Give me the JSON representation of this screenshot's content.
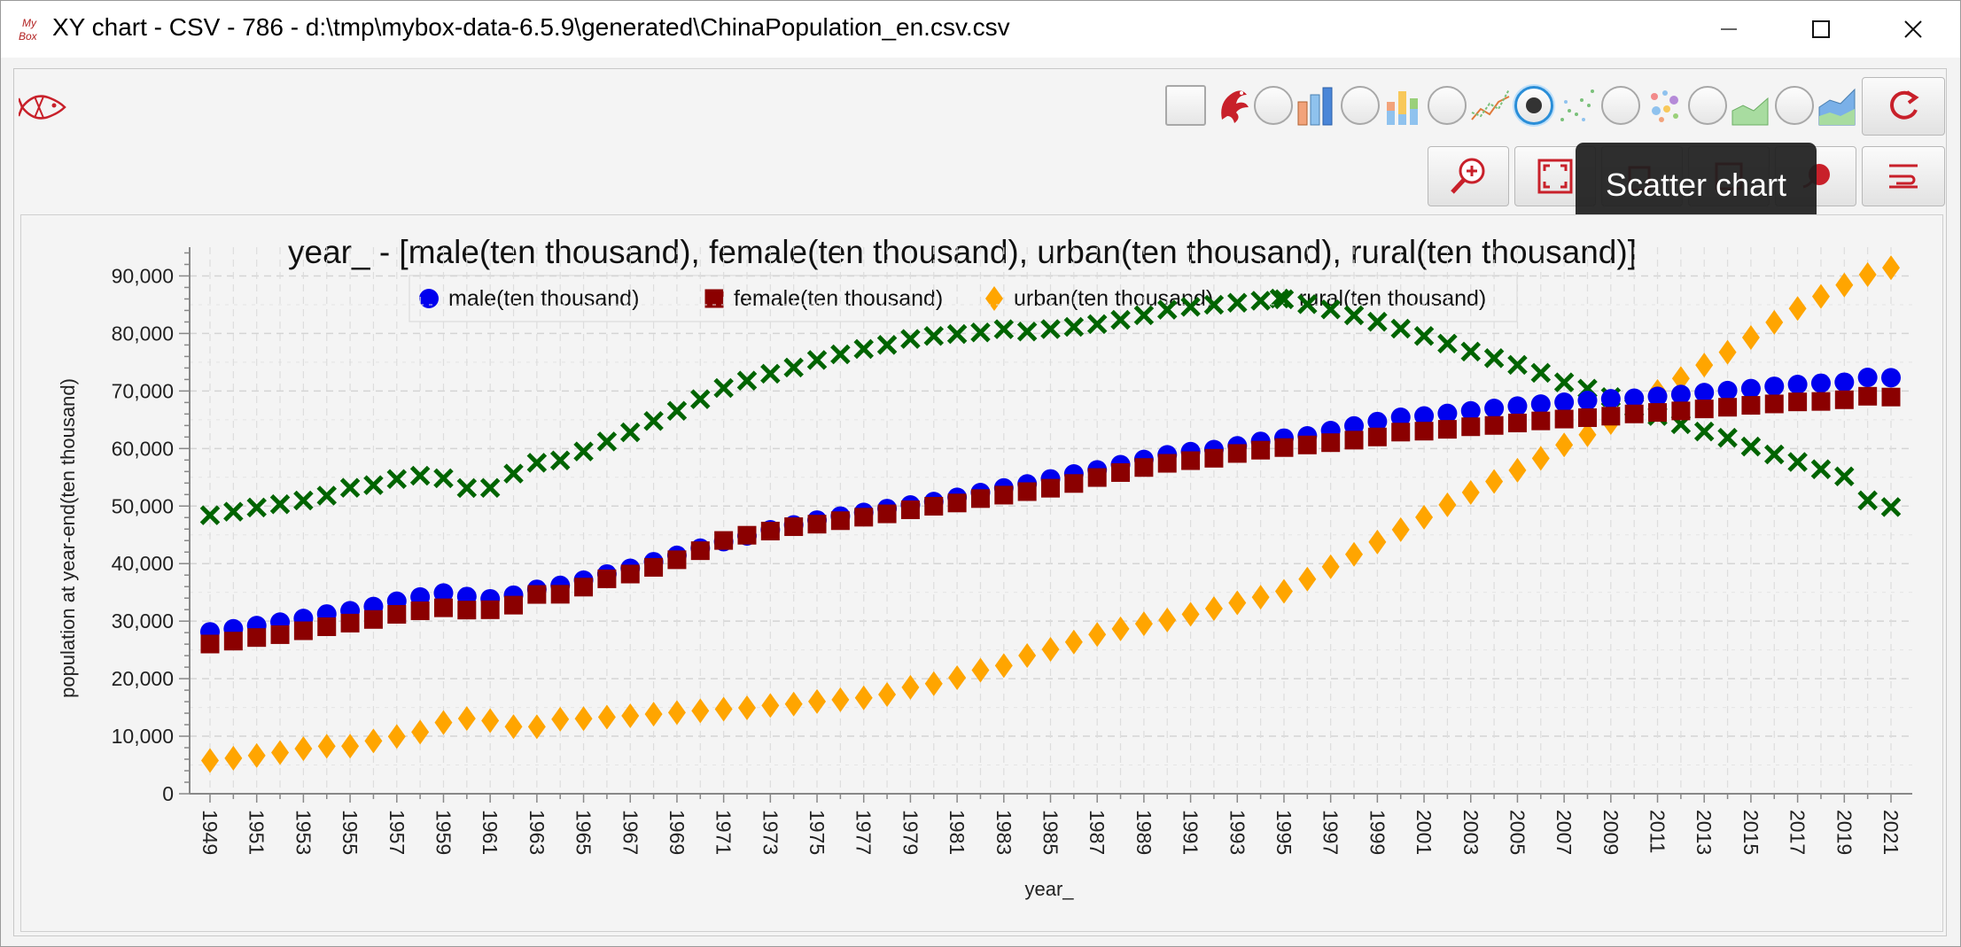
{
  "window": {
    "title": "XY chart - CSV - 786 - d:\\tmp\\mybox-data-6.5.9\\generated\\ChinaPopulation_en.csv.csv",
    "app_icon_text_top": "My",
    "app_icon_text_bottom": "Box"
  },
  "toolbar": {
    "chart_types": [
      "bar",
      "stacked-bar",
      "line",
      "scatter",
      "bubble",
      "area",
      "stacked-area"
    ],
    "selected_chart_type": "scatter",
    "tooltip": "Scatter chart",
    "icons": [
      "fish-logo-icon",
      "phoenix-icon",
      "zoom-in-icon",
      "fit-screen-icon",
      "copy-icon",
      "save-icon",
      "style-icon",
      "menu-icon",
      "refresh-icon"
    ]
  },
  "colors": {
    "male": "#0000ee",
    "female": "#8b0000",
    "urban": "#ffa500",
    "rural": "#006400",
    "accent": "#c8202a",
    "selection": "#2a8ed8"
  },
  "chart_data": {
    "type": "scatter",
    "title": "year_ - [male(ten thousand), female(ten thousand), urban(ten thousand), rural(ten thousand)]",
    "xlabel": "year_",
    "ylabel": "population at year-end(ten thousand)",
    "ylim": [
      0,
      95000
    ],
    "y_ticks": [
      0,
      10000,
      20000,
      30000,
      40000,
      50000,
      60000,
      70000,
      80000,
      90000
    ],
    "y_tick_labels": [
      "0",
      "10,000",
      "20,000",
      "30,000",
      "40,000",
      "50,000",
      "60,000",
      "70,000",
      "80,000",
      "90,000"
    ],
    "x_tick_labels": [
      "1949",
      "1951",
      "1953",
      "1955",
      "1957",
      "1959",
      "1961",
      "1963",
      "1965",
      "1967",
      "1969",
      "1971",
      "1973",
      "1975",
      "1977",
      "1979",
      "1981",
      "1983",
      "1985",
      "1987",
      "1989",
      "1991",
      "1993",
      "1995",
      "1997",
      "1999",
      "2001",
      "2003",
      "2005",
      "2007",
      "2009",
      "2011",
      "2013",
      "2015",
      "2017",
      "2019",
      "2021"
    ],
    "grid": true,
    "legend_position": "top",
    "x": [
      1949,
      1950,
      1951,
      1952,
      1953,
      1954,
      1955,
      1956,
      1957,
      1958,
      1959,
      1960,
      1961,
      1962,
      1963,
      1964,
      1965,
      1966,
      1967,
      1968,
      1969,
      1970,
      1971,
      1972,
      1973,
      1974,
      1975,
      1976,
      1977,
      1978,
      1979,
      1980,
      1981,
      1982,
      1983,
      1984,
      1985,
      1986,
      1987,
      1988,
      1989,
      1990,
      1991,
      1992,
      1993,
      1994,
      1995,
      1996,
      1997,
      1998,
      1999,
      2000,
      2001,
      2002,
      2003,
      2004,
      2005,
      2006,
      2007,
      2008,
      2009,
      2010,
      2011,
      2012,
      2013,
      2014,
      2015,
      2016,
      2017,
      2018,
      2019,
      2020,
      2021
    ],
    "series": [
      {
        "name": "male(ten thousand)",
        "marker": "circle",
        "values": [
          28145,
          28669,
          29231,
          29833,
          30468,
          31242,
          31809,
          32536,
          33469,
          34195,
          34890,
          34283,
          33880,
          34517,
          35533,
          36217,
          37128,
          38189,
          39183,
          40325,
          41439,
          42686,
          43819,
          44813,
          45876,
          46727,
          47564,
          48257,
          48908,
          49567,
          50192,
          50785,
          51519,
          52352,
          53152,
          53848,
          54725,
          55581,
          56290,
          57201,
          58099,
          58904,
          59466,
          59811,
          60472,
          61246,
          61808,
          62200,
          63131,
          63940,
          64692,
          65437,
          65672,
          66115,
          66556,
          66976,
          67375,
          67728,
          68048,
          68357,
          68647,
          68748,
          69068,
          69395,
          69728,
          70079,
          70414,
          70815,
          71137,
          71351,
          71527,
          72357,
          72311
        ]
      },
      {
        "name": "female(ten thousand)",
        "marker": "square",
        "values": [
          26022,
          26527,
          27151,
          27649,
          28328,
          29024,
          29656,
          30292,
          31183,
          31799,
          32317,
          31924,
          31978,
          32778,
          34639,
          34668,
          35910,
          37353,
          38185,
          39347,
          40668,
          42243,
          44022,
          44927,
          45655,
          46417,
          46856,
          47460,
          48066,
          48647,
          49350,
          49969,
          50535,
          51302,
          51900,
          52509,
          53100,
          53926,
          54962,
          55825,
          56704,
          57429,
          57893,
          58310,
          59141,
          59711,
          60168,
          60620,
          61017,
          61458,
          62009,
          62856,
          63018,
          63341,
          63786,
          64013,
          64443,
          64800,
          65122,
          65365,
          65623,
          66014,
          66271,
          66538,
          66884,
          67176,
          67507,
          67753,
          68107,
          68187,
          68478,
          69087,
          68949
        ]
      },
      {
        "name": "urban(ten thousand)",
        "marker": "diamond",
        "values": [
          5765,
          6169,
          6632,
          7163,
          7826,
          8249,
          8285,
          9185,
          9949,
          10721,
          12371,
          13073,
          12707,
          11659,
          11646,
          12950,
          13045,
          13313,
          13548,
          13838,
          14117,
          14424,
          14711,
          14935,
          15345,
          15595,
          16030,
          16341,
          16669,
          17245,
          18495,
          19140,
          20171,
          21480,
          22274,
          24017,
          25094,
          26366,
          27674,
          28661,
          29540,
          30195,
          31203,
          32175,
          33173,
          34169,
          35174,
          37304,
          39449,
          41608,
          43748,
          45906,
          48064,
          50212,
          52376,
          54283,
          56212,
          58288,
          60633,
          62403,
          64512,
          66978,
          69927,
          72175,
          74502,
          76738,
          79302,
          81924,
          84343,
          86433,
          88426,
          90220,
          91425
        ]
      },
      {
        "name": "rural(ten thousand)",
        "marker": "cross",
        "values": [
          48402,
          49027,
          49750,
          50319,
          50970,
          51817,
          53180,
          53643,
          54704,
          55273,
          54836,
          53134,
          53152,
          55636,
          57526,
          57935,
          59493,
          61229,
          62820,
          64784,
          66554,
          68568,
          70520,
          71799,
          72996,
          74079,
          75390,
          76376,
          77305,
          78014,
          79047,
          79565,
          79901,
          80174,
          80734,
          80340,
          80757,
          81141,
          81626,
          82365,
          83164,
          84138,
          84620,
          84996,
          85344,
          85681,
          85947,
          85085,
          84177,
          83153,
          82038,
          80837,
          79563,
          78241,
          76851,
          75705,
          74544,
          73160,
          71496,
          70399,
          68938,
          67113,
          65656,
          64222,
          62961,
          61866,
          60346,
          58973,
          57661,
          56401,
          55162,
          50992,
          49835
        ]
      }
    ]
  }
}
